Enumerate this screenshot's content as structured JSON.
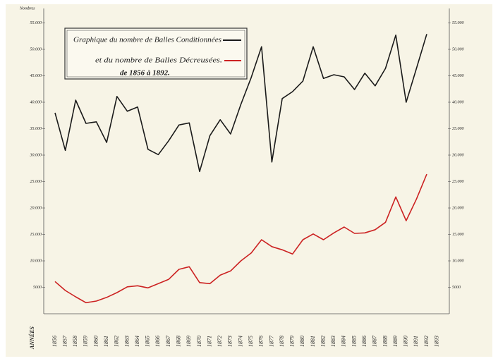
{
  "chart_data": {
    "type": "line",
    "title": "de 1856 à 1892.",
    "y_label": "Nombres",
    "x_label": "ANNÉES",
    "categories": [
      "1856",
      "1857",
      "1858",
      "1859",
      "1860",
      "1861",
      "1862",
      "1863",
      "1864",
      "1865",
      "1866",
      "1867",
      "1868",
      "1869",
      "1870",
      "1871",
      "1872",
      "1873",
      "1874",
      "1875",
      "1876",
      "1877",
      "1878",
      "1879",
      "1880",
      "1881",
      "1882",
      "1883",
      "1884",
      "1885",
      "1886",
      "1887",
      "1888",
      "1889",
      "1890",
      "1891",
      "1892",
      "1893"
    ],
    "series": [
      {
        "name": "Graphique du nombre de Balles Conditionnées",
        "color": "#1a1a1a",
        "values": [
          38000,
          30900,
          40400,
          36000,
          36300,
          32400,
          41100,
          38300,
          39100,
          31100,
          30100,
          32700,
          35700,
          36100,
          26900,
          33700,
          36700,
          34000,
          39600,
          44700,
          50500,
          28700,
          40700,
          42000,
          44000,
          50500,
          44500,
          45200,
          44800,
          42400,
          45500,
          43100,
          46400,
          52700,
          40000,
          46400,
          52900,
          null
        ]
      },
      {
        "name": "et du nombre de Balles Décreusées.",
        "color": "#cc2222",
        "values": [
          6100,
          4400,
          3200,
          2100,
          2400,
          3100,
          4000,
          5100,
          5300,
          4900,
          5700,
          6500,
          8400,
          8900,
          5900,
          5700,
          7300,
          8100,
          10000,
          11500,
          14000,
          12700,
          12100,
          11300,
          14000,
          15100,
          14000,
          15300,
          16400,
          15200,
          15300,
          15900,
          17300,
          22100,
          17600,
          21700,
          26400,
          null
        ]
      }
    ],
    "ylim": [
      0,
      58000
    ],
    "yticks": [
      {
        "value": 5000,
        "label": "5000"
      },
      {
        "value": 10000,
        "label": "10.000"
      },
      {
        "value": 15000,
        "label": "15.000"
      },
      {
        "value": 20000,
        "label": "20.000"
      },
      {
        "value": 25000,
        "label": "25.000"
      },
      {
        "value": 30000,
        "label": "30.000"
      },
      {
        "value": 35000,
        "label": "35.000"
      },
      {
        "value": 40000,
        "label": "40.000"
      },
      {
        "value": 45000,
        "label": "45.000"
      },
      {
        "value": 50000,
        "label": "50.000"
      },
      {
        "value": 55000,
        "label": "55.000"
      }
    ],
    "grid": false
  }
}
